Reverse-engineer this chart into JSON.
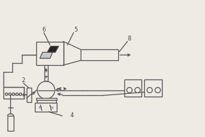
{
  "bg_color": "#eeebe5",
  "line_color": "#555555",
  "label_color": "#444444",
  "lw": 0.9
}
